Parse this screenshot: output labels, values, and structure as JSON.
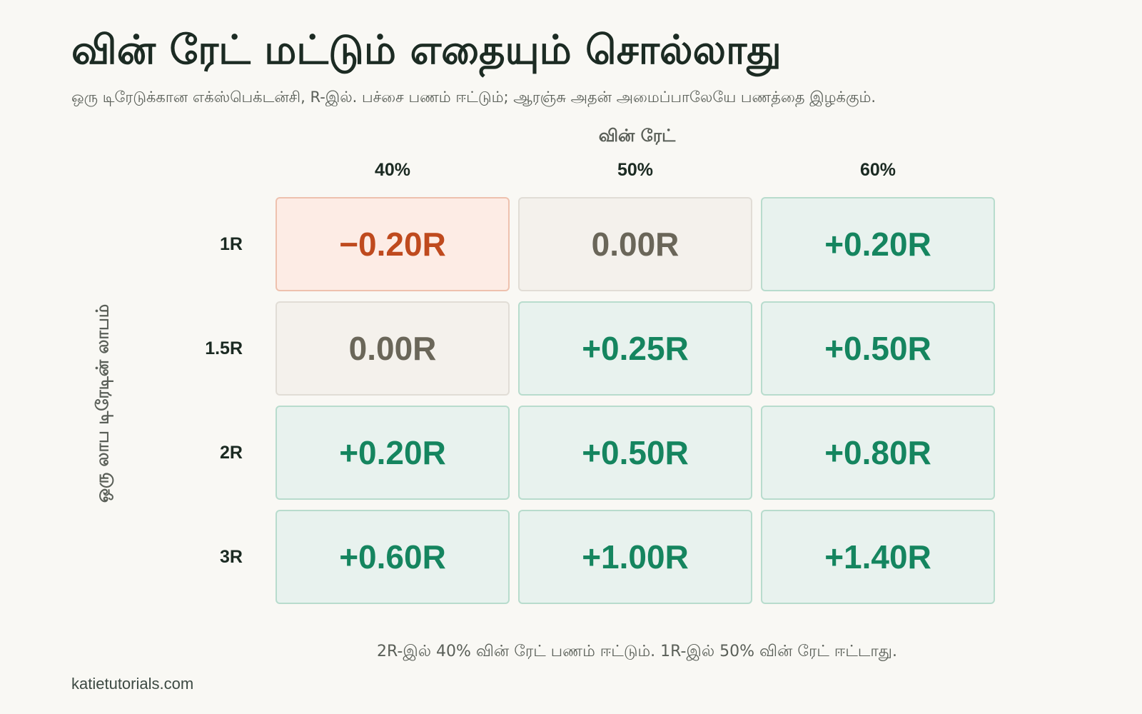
{
  "chart_data": {
    "type": "heatmap",
    "title": "வின் ரேட் மட்டும் எதையும் சொல்லாது",
    "subtitle": "ஒரு டிரேடுக்கான எக்ஸ்பெக்டன்சி, R-இல். பச்சை பணம் ஈட்டும்; ஆரஞ்சு அதன் அமைப்பாலேயே பணத்தை இழக்கும்.",
    "xlabel": "வின் ரேட்",
    "ylabel": "ஒரு லாப டிரேடின் லாபம்",
    "x": [
      "40%",
      "50%",
      "60%"
    ],
    "y": [
      "1R",
      "1.5R",
      "2R",
      "3R"
    ],
    "values": [
      [
        -0.2,
        0.0,
        0.2
      ],
      [
        0.0,
        0.25,
        0.5
      ],
      [
        0.2,
        0.5,
        0.8
      ],
      [
        0.6,
        1.0,
        1.4
      ]
    ],
    "labels": [
      [
        "−0.20R",
        "0.00R",
        "+0.20R"
      ],
      [
        "0.00R",
        "+0.25R",
        "+0.50R"
      ],
      [
        "+0.20R",
        "+0.50R",
        "+0.80R"
      ],
      [
        "+0.60R",
        "+1.00R",
        "+1.40R"
      ]
    ],
    "colors": {
      "negative": "#bf4a1e",
      "neutral": "#6a6659",
      "positive": "#15855f"
    },
    "annotation": "2R-இல் 40% வின் ரேட் பணம் ஈட்டும். 1R-இல் 50% வின் ரேட் ஈட்டாது."
  },
  "footer": {
    "brand": "katietutorials.com"
  }
}
